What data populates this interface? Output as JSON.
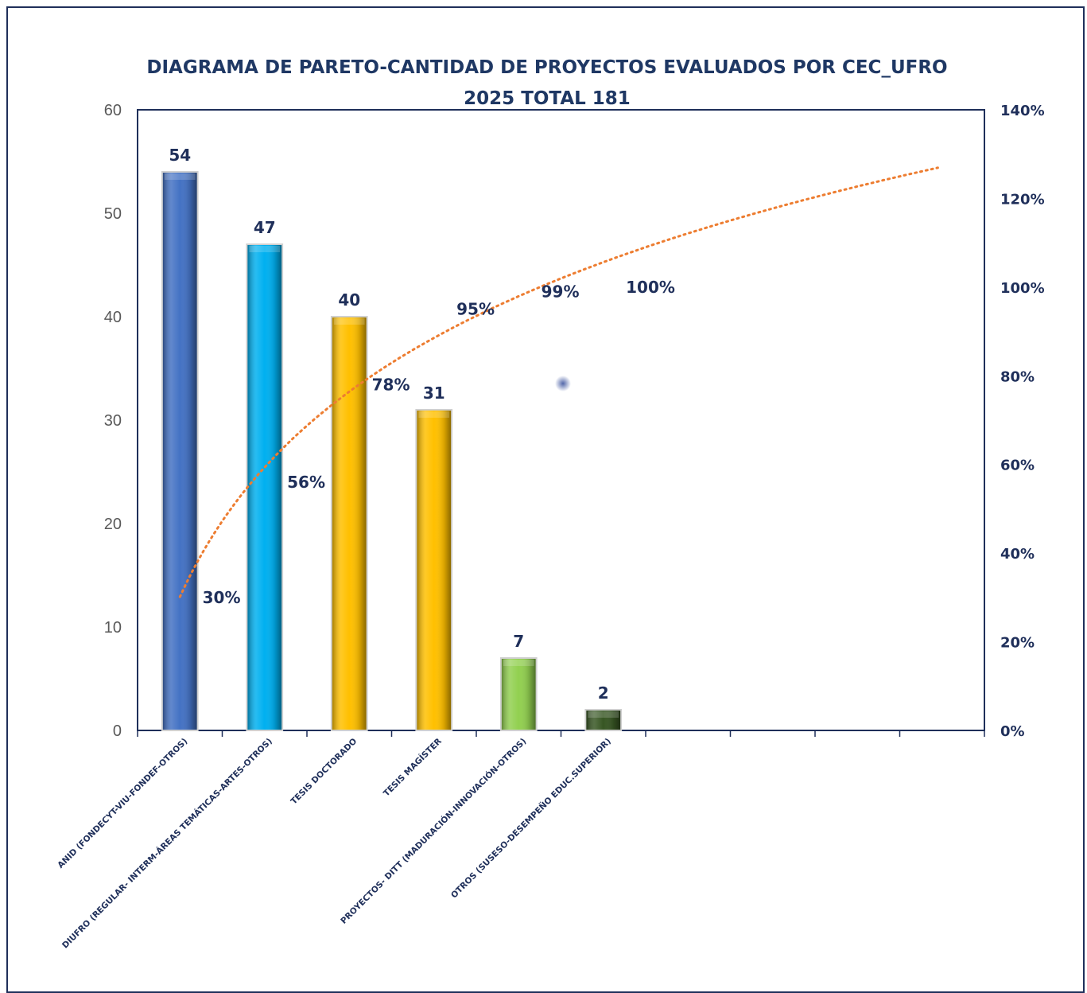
{
  "chart_data": {
    "type": "bar",
    "title_lines": [
      "DIAGRAMA DE PARETO-CANTIDAD DE PROYECTOS EVALUADOS POR  CEC_UFRO",
      "2025 TOTAL 181"
    ],
    "categories": [
      "ANID (FONDECYT-VIU-FONDEF-OTROS)",
      "DIUFRO (REGULAR- INTERM-ÁREAS TEMÁTICAS-ARTES-OTROS)",
      "TESIS DOCTORADO",
      "TESIS MAGÍSTER",
      "PROYECTOS- DITT (MADURACIÓN-INNOVACIÓN-OTROS)",
      "OTROS (SUSESO-DESEMPEÑO EDUC.SUPERIOR)"
    ],
    "values": [
      54,
      47,
      40,
      31,
      7,
      2
    ],
    "value_labels": [
      "54",
      "47",
      "40",
      "31",
      "7",
      "2"
    ],
    "bar_colors": [
      "#4472c4",
      "#00b0f0",
      "#ffc000",
      "#ffc000",
      "#92d050",
      "#375623"
    ],
    "cumulative_labels": [
      "30%",
      "56%",
      "78%",
      "95%",
      "99%",
      "100%"
    ],
    "cumulative_values": [
      30,
      56,
      78,
      95,
      99,
      100
    ],
    "trendline": {
      "style": "dotted",
      "color": "#ed7d31",
      "type": "logarithmic"
    },
    "y_left": {
      "min": 0,
      "max": 60,
      "ticks": [
        "0",
        "10",
        "20",
        "30",
        "40",
        "50",
        "60"
      ]
    },
    "y_right": {
      "min": 0,
      "max": 140,
      "ticks": [
        "0%",
        "20%",
        "40%",
        "60%",
        "80%",
        "100%",
        "120%",
        "140%"
      ]
    },
    "x_slots": 10,
    "grid": false,
    "legend": "none",
    "title_color": "#1f3864",
    "border_color": "#1f2f5a"
  }
}
